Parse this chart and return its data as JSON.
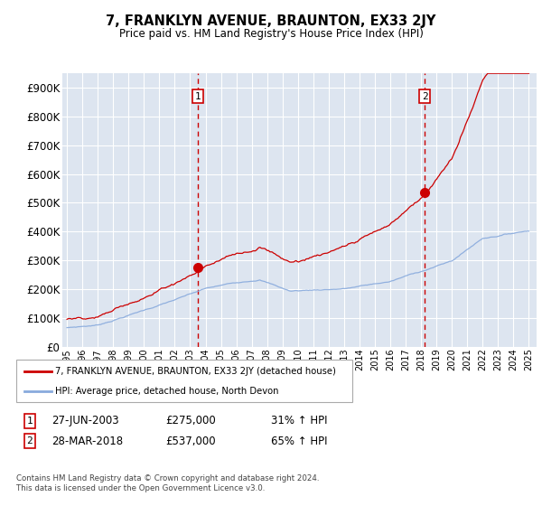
{
  "title": "7, FRANKLYN AVENUE, BRAUNTON, EX33 2JY",
  "subtitle": "Price paid vs. HM Land Registry's House Price Index (HPI)",
  "ytick_values": [
    0,
    100000,
    200000,
    300000,
    400000,
    500000,
    600000,
    700000,
    800000,
    900000
  ],
  "ylim": [
    0,
    950000
  ],
  "xlim_start": 1994.7,
  "xlim_end": 2025.5,
  "background_color": "#dde5f0",
  "grid_color": "#ffffff",
  "sale1_date": 2003.49,
  "sale1_price": 275000,
  "sale2_date": 2018.24,
  "sale2_price": 537000,
  "sale1_label": "27-JUN-2003",
  "sale1_amount": "£275,000",
  "sale1_hpi": "31% ↑ HPI",
  "sale2_label": "28-MAR-2018",
  "sale2_amount": "£537,000",
  "sale2_hpi": "65% ↑ HPI",
  "legend1": "7, FRANKLYN AVENUE, BRAUNTON, EX33 2JY (detached house)",
  "legend2": "HPI: Average price, detached house, North Devon",
  "footer": "Contains HM Land Registry data © Crown copyright and database right 2024.\nThis data is licensed under the Open Government Licence v3.0.",
  "line_color_red": "#cc0000",
  "line_color_blue": "#88aadd",
  "dashed_line_color": "#cc0000"
}
